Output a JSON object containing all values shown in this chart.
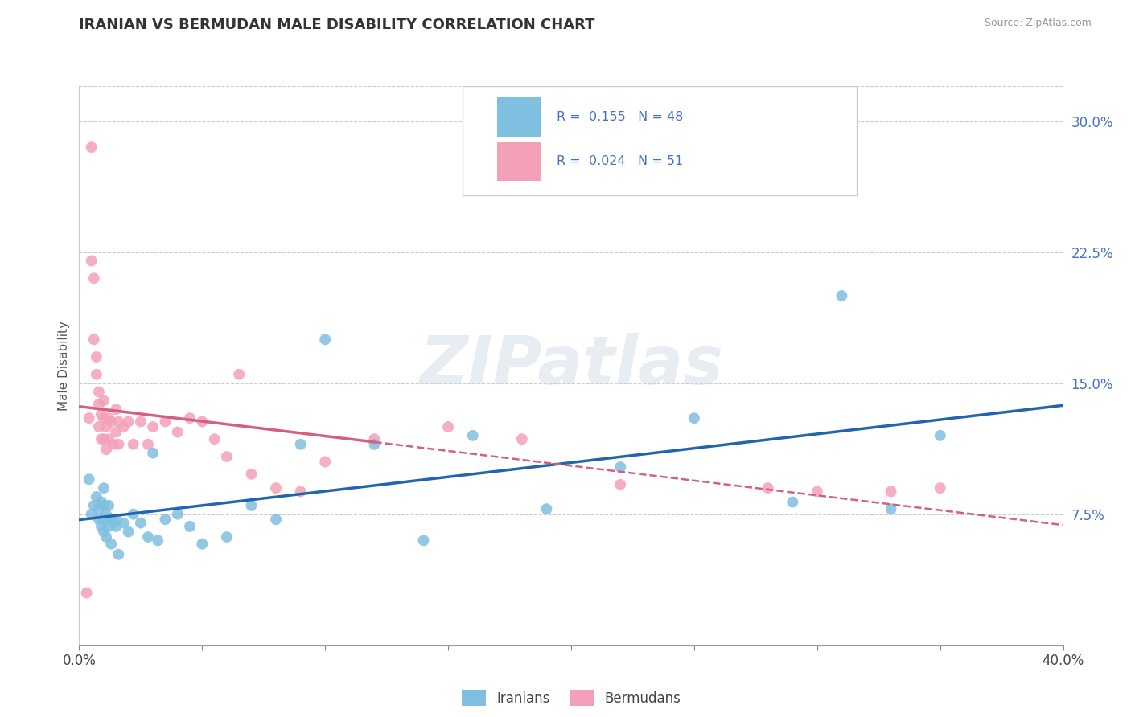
{
  "title": "IRANIAN VS BERMUDAN MALE DISABILITY CORRELATION CHART",
  "source": "Source: ZipAtlas.com",
  "ylabel": "Male Disability",
  "xlim": [
    0.0,
    0.4
  ],
  "ylim": [
    0.0,
    0.32
  ],
  "ytick_labels": [
    "7.5%",
    "15.0%",
    "22.5%",
    "30.0%"
  ],
  "ytick_vals": [
    0.075,
    0.15,
    0.225,
    0.3
  ],
  "xtick_vals": [
    0.0,
    0.05,
    0.1,
    0.15,
    0.2,
    0.25,
    0.3,
    0.35,
    0.4
  ],
  "iranian_color": "#7fbfdf",
  "bermudan_color": "#f4a0b8",
  "iranian_line_color": "#2166ac",
  "bermudan_line_color": "#d46080",
  "watermark": "ZIPatlas",
  "iranians_x": [
    0.004,
    0.005,
    0.006,
    0.007,
    0.008,
    0.008,
    0.009,
    0.009,
    0.01,
    0.01,
    0.01,
    0.01,
    0.011,
    0.011,
    0.012,
    0.012,
    0.013,
    0.013,
    0.014,
    0.015,
    0.015,
    0.016,
    0.018,
    0.02,
    0.022,
    0.025,
    0.028,
    0.03,
    0.032,
    0.035,
    0.04,
    0.045,
    0.05,
    0.06,
    0.07,
    0.08,
    0.09,
    0.1,
    0.12,
    0.14,
    0.16,
    0.19,
    0.22,
    0.25,
    0.29,
    0.31,
    0.33,
    0.35
  ],
  "iranians_y": [
    0.095,
    0.075,
    0.08,
    0.085,
    0.078,
    0.072,
    0.082,
    0.068,
    0.09,
    0.08,
    0.072,
    0.065,
    0.075,
    0.062,
    0.08,
    0.068,
    0.072,
    0.058,
    0.07,
    0.072,
    0.068,
    0.052,
    0.07,
    0.065,
    0.075,
    0.07,
    0.062,
    0.11,
    0.06,
    0.072,
    0.075,
    0.068,
    0.058,
    0.062,
    0.08,
    0.072,
    0.115,
    0.175,
    0.115,
    0.06,
    0.12,
    0.078,
    0.102,
    0.13,
    0.082,
    0.2,
    0.078,
    0.12
  ],
  "bermudans_x": [
    0.003,
    0.004,
    0.005,
    0.005,
    0.006,
    0.006,
    0.007,
    0.007,
    0.008,
    0.008,
    0.008,
    0.009,
    0.009,
    0.01,
    0.01,
    0.01,
    0.011,
    0.011,
    0.012,
    0.012,
    0.013,
    0.014,
    0.015,
    0.015,
    0.016,
    0.016,
    0.018,
    0.02,
    0.022,
    0.025,
    0.028,
    0.03,
    0.035,
    0.04,
    0.045,
    0.05,
    0.055,
    0.06,
    0.065,
    0.07,
    0.08,
    0.09,
    0.1,
    0.12,
    0.15,
    0.18,
    0.22,
    0.28,
    0.3,
    0.33,
    0.35
  ],
  "bermudans_y": [
    0.03,
    0.13,
    0.285,
    0.22,
    0.21,
    0.175,
    0.165,
    0.155,
    0.145,
    0.138,
    0.125,
    0.132,
    0.118,
    0.14,
    0.13,
    0.118,
    0.125,
    0.112,
    0.13,
    0.118,
    0.128,
    0.115,
    0.135,
    0.122,
    0.128,
    0.115,
    0.125,
    0.128,
    0.115,
    0.128,
    0.115,
    0.125,
    0.128,
    0.122,
    0.13,
    0.128,
    0.118,
    0.108,
    0.155,
    0.098,
    0.09,
    0.088,
    0.105,
    0.118,
    0.125,
    0.118,
    0.092,
    0.09,
    0.088,
    0.088,
    0.09
  ]
}
